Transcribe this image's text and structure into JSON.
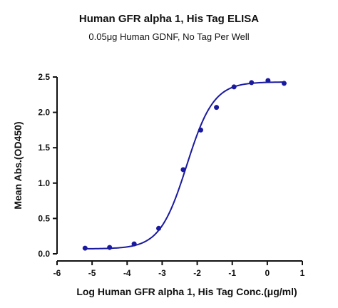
{
  "chart_data": {
    "type": "scatter",
    "title": "Human GFR alpha 1, His Tag ELISA",
    "subtitle": "0.05μg Human GDNF, No Tag Per Well",
    "xlabel": "Log Human GFR alpha 1, His Tag Conc.(μg/ml)",
    "ylabel": "Mean Abs.(OD450)",
    "xlim": [
      -6,
      1
    ],
    "ylim": [
      0,
      2.5
    ],
    "x_ticks": [
      -6,
      -5,
      -4,
      -3,
      -2,
      -1,
      0,
      1
    ],
    "x_tick_labels": [
      "-6",
      "-5",
      "-4",
      "-3",
      "-2",
      "-1",
      "0",
      "1"
    ],
    "y_ticks": [
      0,
      0.5,
      1,
      1.5,
      2,
      2.5
    ],
    "y_tick_labels": [
      "0.0",
      "0.5",
      "1.0",
      "1.5",
      "2.0",
      "2.5"
    ],
    "grid": false,
    "legend": false,
    "points": {
      "x": [
        -5.2,
        -4.5,
        -3.8,
        -3.1,
        -2.4,
        -1.9,
        -1.45,
        -0.95,
        -0.45,
        0.02,
        0.48
      ],
      "y": [
        0.08,
        0.09,
        0.14,
        0.36,
        1.19,
        1.75,
        2.07,
        2.36,
        2.42,
        2.45,
        2.41
      ]
    },
    "fit_curve": {
      "type": "4PL",
      "bottom": 0.07,
      "top": 2.43,
      "log_ec50": -2.3,
      "hill_slope": 1.13,
      "x_range": [
        -5.2,
        0.48
      ]
    },
    "colors": {
      "series": "#1a1aa0",
      "axis": "#111111",
      "text": "#111111"
    }
  }
}
